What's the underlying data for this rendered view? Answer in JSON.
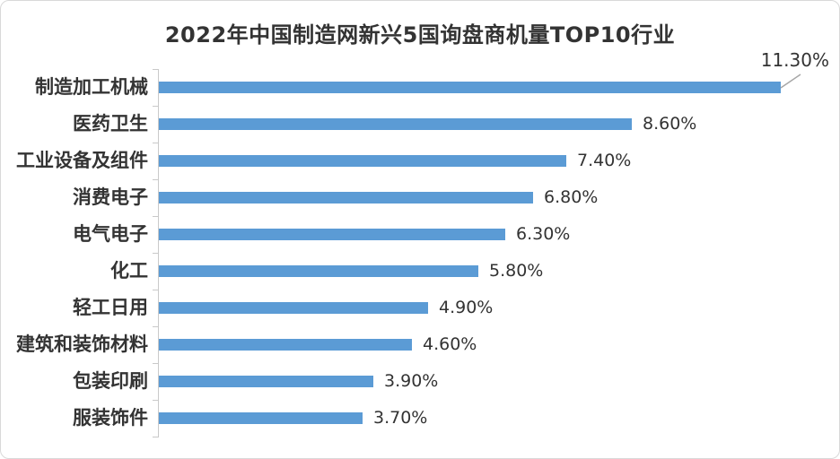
{
  "chart_data": {
    "type": "bar",
    "orientation": "horizontal",
    "title": "2022年中国制造网新兴5国询盘商机量TOP10行业",
    "title_parts": {
      "prefix": "2022年中国制造网新兴5国询盘商机量",
      "highlight": "TOP10",
      "suffix": "行业"
    },
    "categories": [
      "制造加工机械",
      "医药卫生",
      "工业设备及组件",
      "消费电子",
      "电气电子",
      "化工",
      "轻工日用",
      "建筑和装饰材料",
      "包装印刷",
      "服装饰件"
    ],
    "values": [
      11.3,
      8.6,
      7.4,
      6.8,
      6.3,
      5.8,
      4.9,
      4.6,
      3.9,
      3.7
    ],
    "value_labels": [
      "11.30%",
      "8.60%",
      "7.40%",
      "6.80%",
      "6.30%",
      "5.80%",
      "4.90%",
      "4.60%",
      "3.90%",
      "3.70%"
    ],
    "unit": "%",
    "xlabel": "",
    "ylabel": "",
    "xlim": [
      0,
      11.5
    ],
    "grid": false,
    "legend": "none",
    "first_value_callout": true,
    "colors": {
      "bar": "#5b9bd5",
      "axis": "#c9c9c9",
      "text": "#333333",
      "leader_line": "#a6a6a6",
      "border": "#d9d9d9"
    }
  }
}
